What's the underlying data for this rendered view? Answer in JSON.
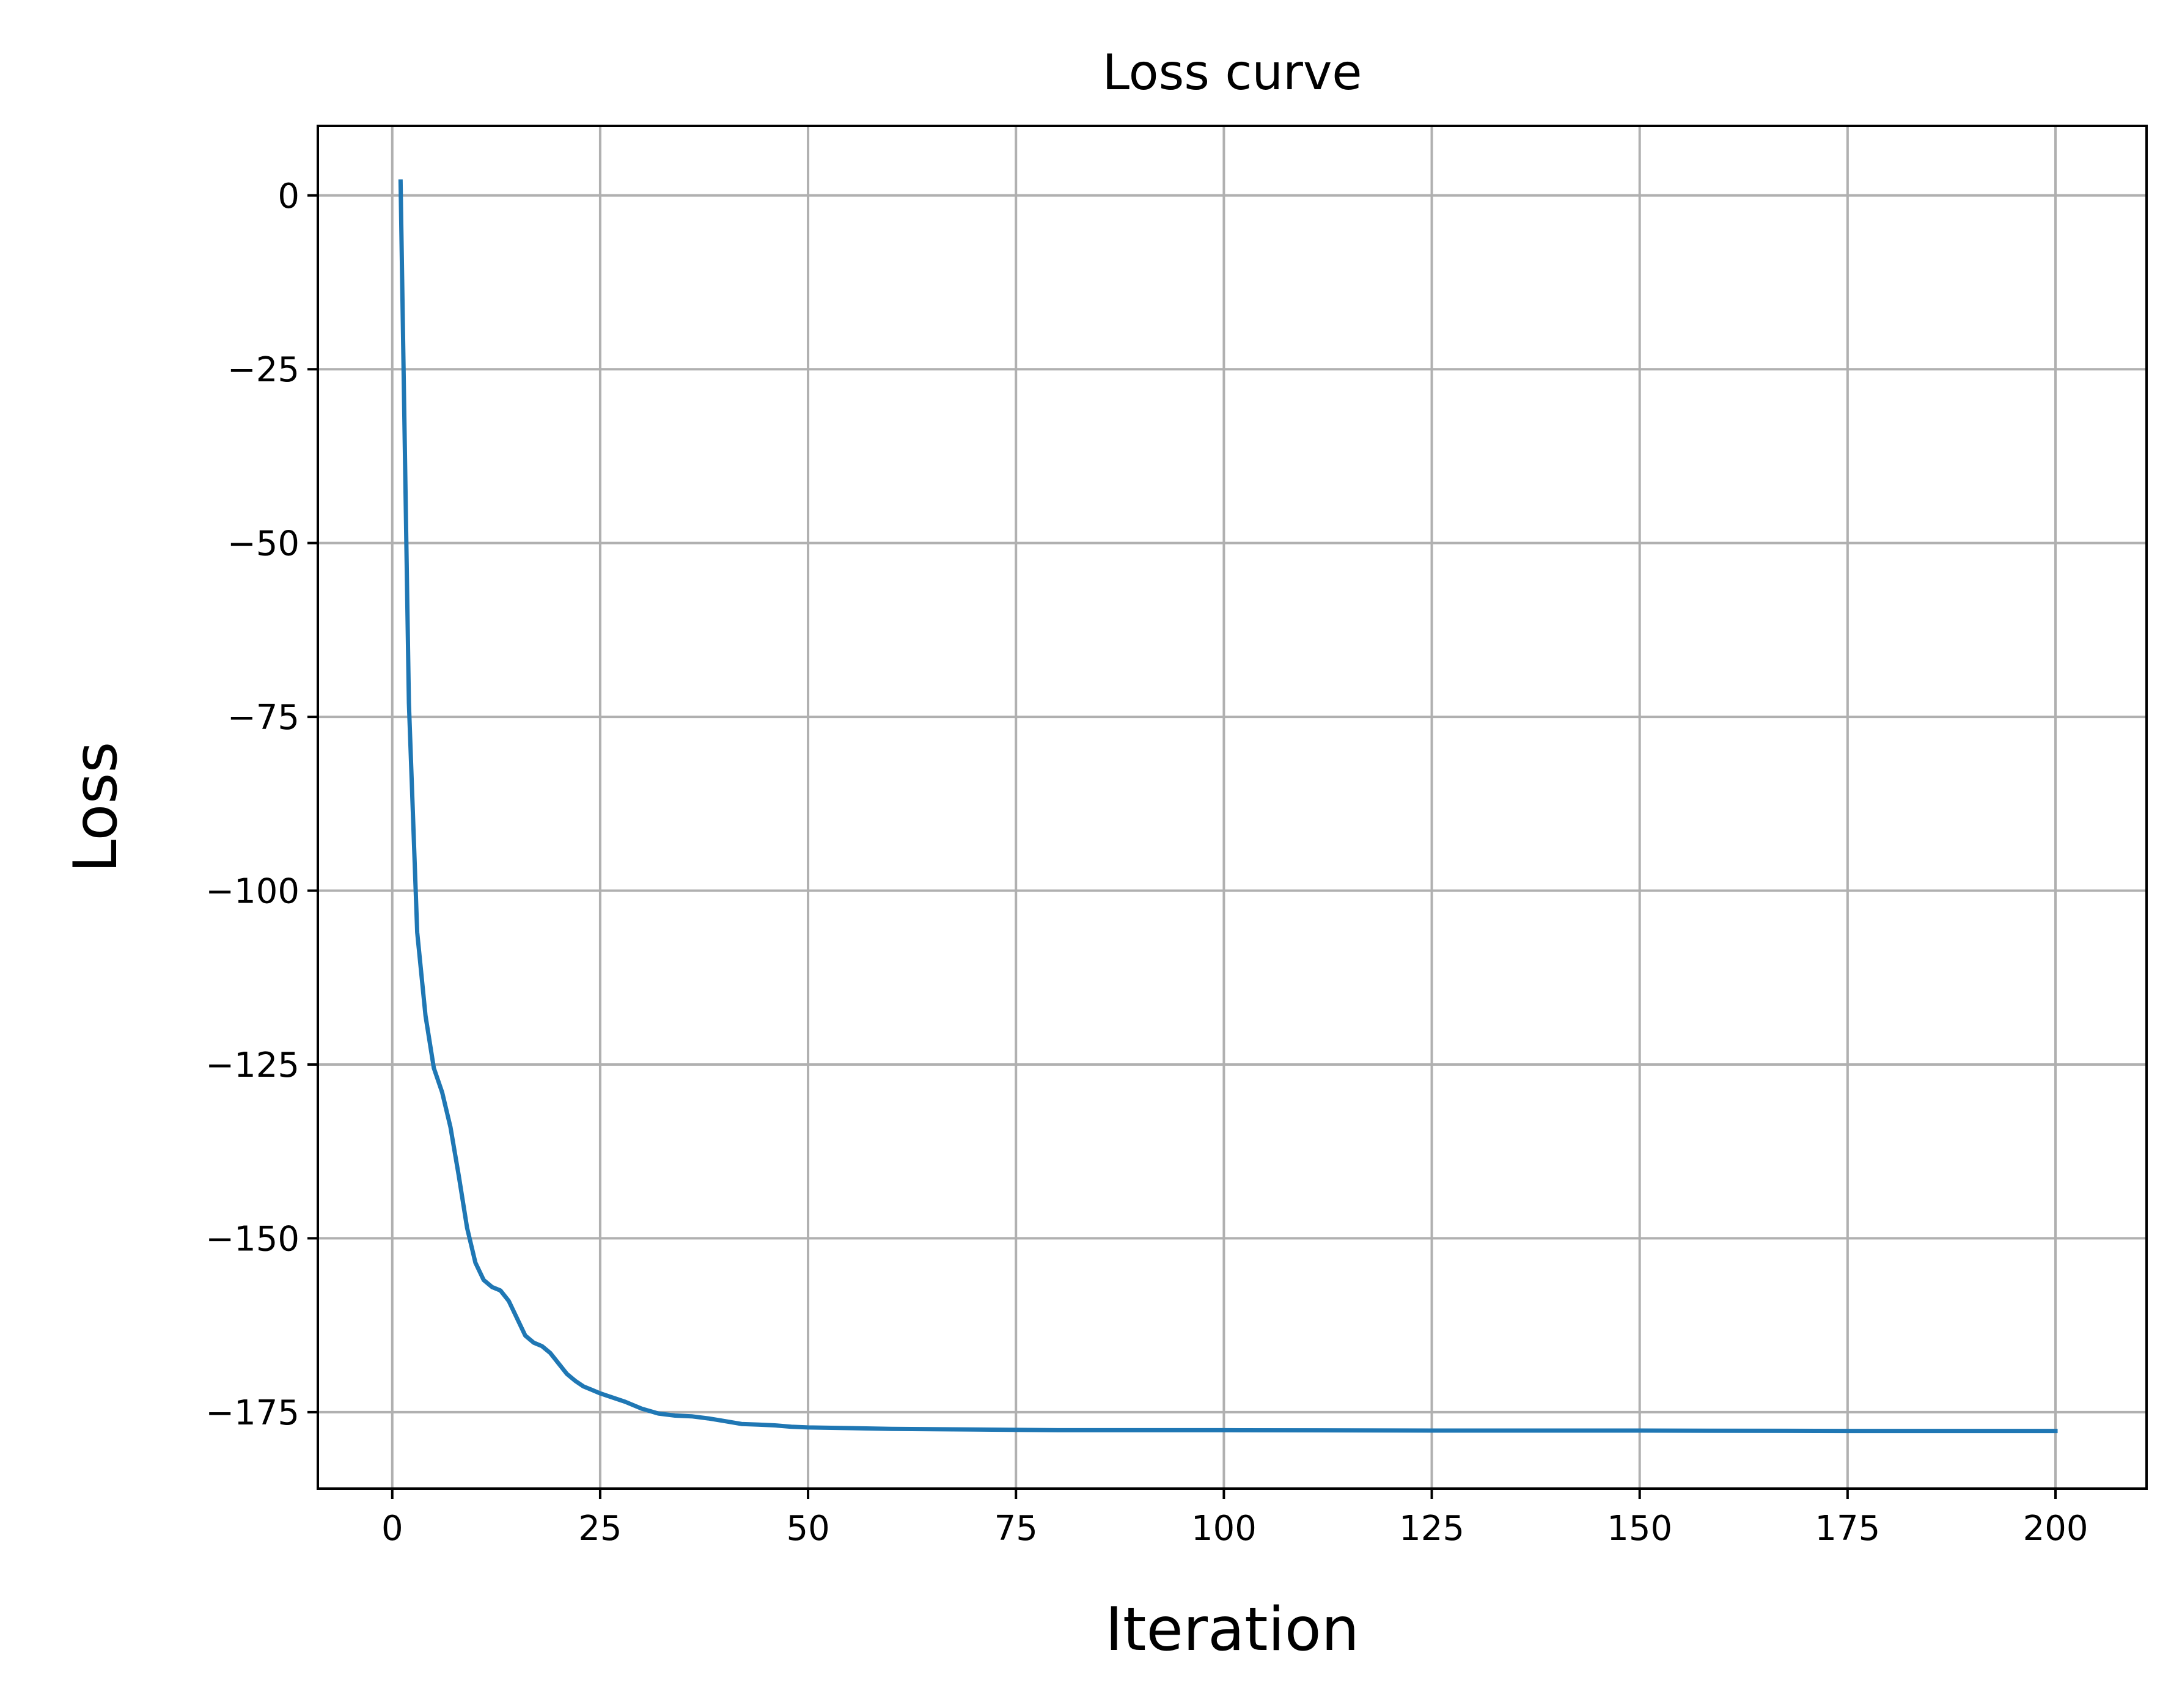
{
  "chart_data": {
    "type": "line",
    "title": "Loss curve",
    "xlabel": "Iteration",
    "ylabel": "Loss",
    "xlim": [
      -8.95,
      210.95
    ],
    "ylim": [
      -186.0,
      10.0
    ],
    "xticks": [
      0,
      25,
      50,
      75,
      100,
      125,
      150,
      175,
      200
    ],
    "xtick_labels": [
      "0",
      "25",
      "50",
      "75",
      "100",
      "125",
      "150",
      "175",
      "200"
    ],
    "yticks": [
      0,
      -25,
      -50,
      -75,
      -100,
      -125,
      -150,
      -175
    ],
    "ytick_labels": [
      "0",
      "−25",
      "−50",
      "−75",
      "−100",
      "−125",
      "−150",
      "−175"
    ],
    "grid": true,
    "legend": "none",
    "series": [
      {
        "color": "#1f77b4",
        "x": [
          1,
          2,
          3,
          4,
          5,
          6,
          7,
          8,
          9,
          10,
          11,
          12,
          13,
          14,
          15,
          16,
          17,
          18,
          19,
          20,
          21,
          22,
          23,
          24,
          25,
          26,
          28,
          30,
          32,
          34,
          36,
          38,
          40,
          42,
          44,
          46,
          48,
          50,
          55,
          60,
          70,
          80,
          100,
          125,
          150,
          175,
          200
        ],
        "y": [
          2,
          -73,
          -106,
          -118,
          -125.5,
          -129,
          -134,
          -141,
          -148.5,
          -153.5,
          -156,
          -157,
          -157.5,
          -159,
          -161.5,
          -164,
          -165,
          -165.5,
          -166.5,
          -168,
          -169.5,
          -170.5,
          -171.3,
          -171.8,
          -172.3,
          -172.7,
          -173.5,
          -174.5,
          -175.2,
          -175.5,
          -175.6,
          -175.9,
          -176.3,
          -176.7,
          -176.8,
          -176.9,
          -177.1,
          -177.2,
          -177.3,
          -177.4,
          -177.5,
          -177.6,
          -177.6,
          -177.65,
          -177.65,
          -177.7,
          -177.7
        ]
      }
    ]
  }
}
